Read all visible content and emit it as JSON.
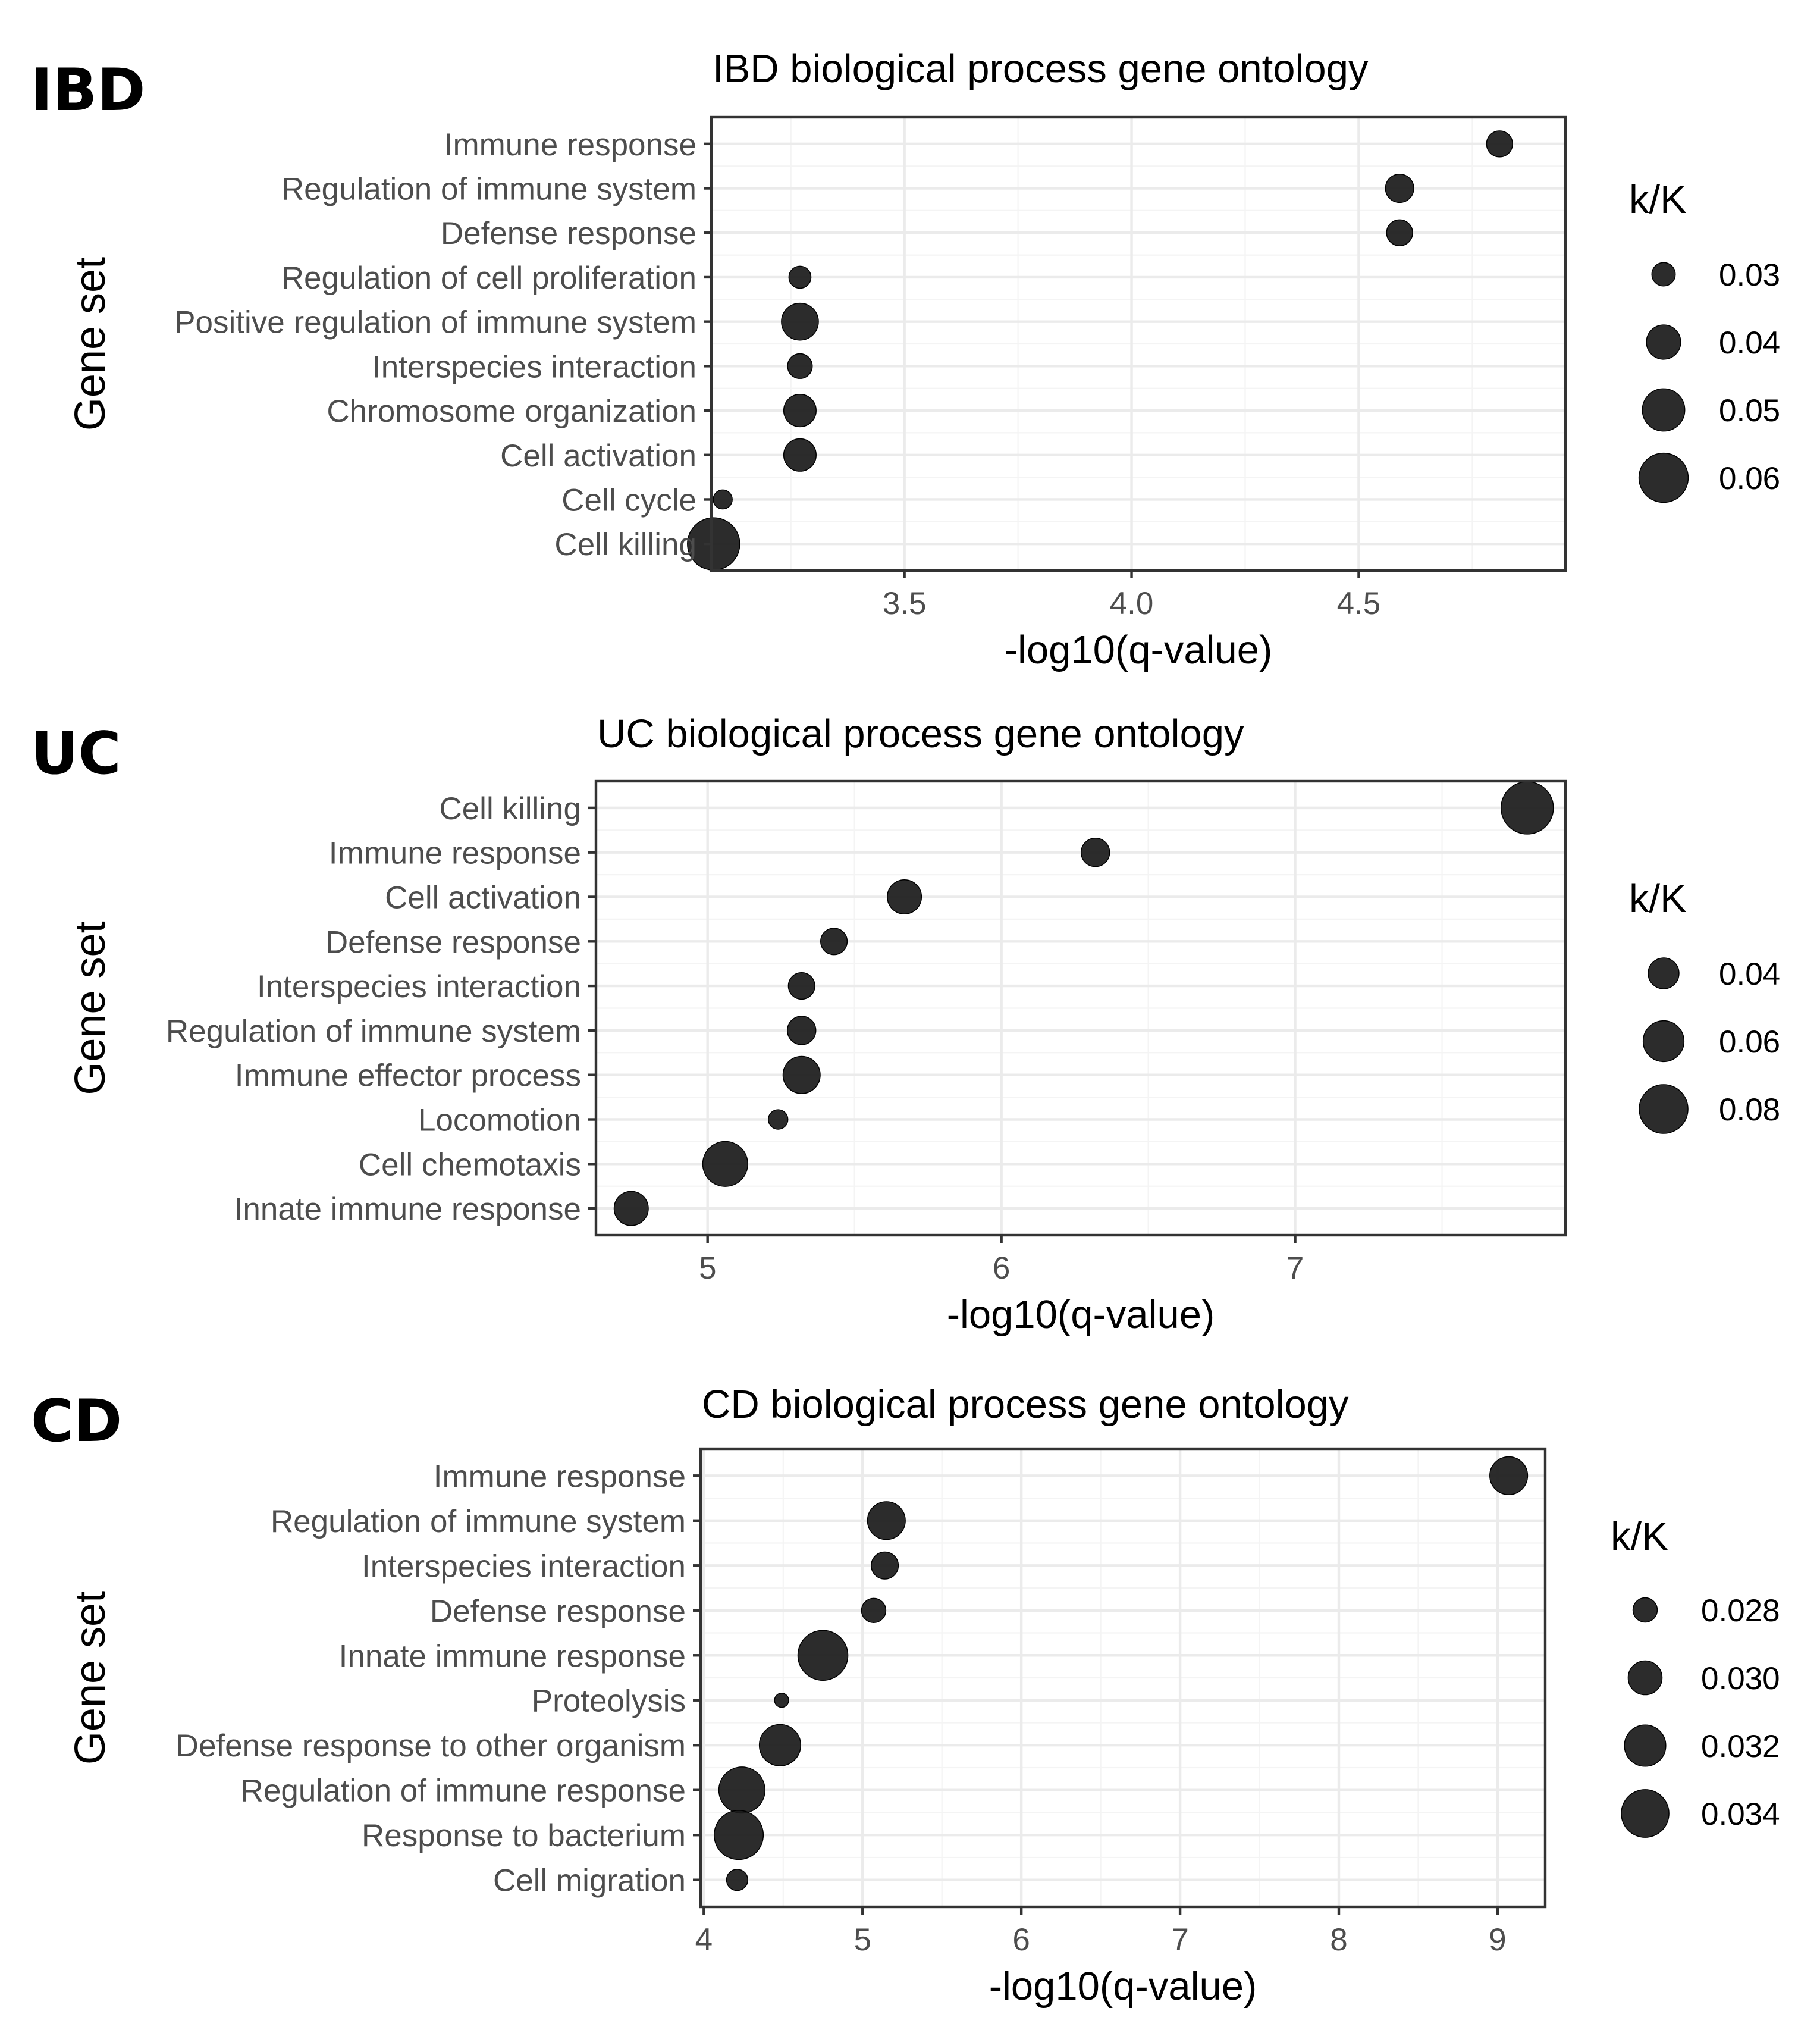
{
  "chart_data": [
    {
      "type": "scatter",
      "panel_label": "IBD",
      "title": "IBD biological process gene ontology",
      "xlabel": "-log10(q-value)",
      "ylabel": "Gene set",
      "xlim": [
        3.075,
        4.955
      ],
      "x_ticks": [
        3.5,
        4.0,
        4.5
      ],
      "x_tick_labels": [
        "3.5",
        "4.0",
        "4.5"
      ],
      "grid": true,
      "legend": {
        "title": "k/K",
        "position": "right",
        "values": [
          0.03,
          0.04,
          0.05,
          0.06
        ],
        "labels": [
          "0.03",
          "0.04",
          "0.05",
          "0.06"
        ]
      },
      "size_range": [
        0.025,
        0.065
      ],
      "categories": [
        "Immune response",
        "Regulation of immune system",
        "Defense response",
        "Regulation of cell proliferation",
        "Positive regulation of immune system",
        "Interspecies interaction",
        "Chromosome organization",
        "Cell activation",
        "Cell cycle",
        "Cell killing"
      ],
      "x": [
        4.81,
        4.59,
        4.59,
        3.27,
        3.27,
        3.27,
        3.27,
        3.27,
        3.1,
        3.08
      ],
      "size": [
        0.032,
        0.034,
        0.032,
        0.029,
        0.043,
        0.031,
        0.038,
        0.038,
        0.027,
        0.065
      ]
    },
    {
      "type": "scatter",
      "panel_label": "UC",
      "title": "UC biological process gene ontology",
      "xlabel": "-log10(q-value)",
      "ylabel": "Gene set",
      "xlim": [
        4.62,
        7.92
      ],
      "x_ticks": [
        5,
        6,
        7
      ],
      "x_tick_labels": [
        "5",
        "6",
        "7"
      ],
      "grid": true,
      "legend": {
        "title": "k/K",
        "position": "right",
        "values": [
          0.04,
          0.06,
          0.08
        ],
        "labels": [
          "0.04",
          "0.06",
          "0.08"
        ]
      },
      "size_range": [
        0.02,
        0.09
      ],
      "categories": [
        "Cell killing",
        "Immune response",
        "Cell activation",
        "Defense response",
        "Interspecies interaction",
        "Regulation of immune system",
        "Immune effector process",
        "Locomotion",
        "Cell chemotaxis",
        "Innate immune response"
      ],
      "x": [
        7.79,
        6.32,
        5.67,
        5.43,
        5.32,
        5.32,
        5.32,
        5.24,
        5.06,
        4.74
      ],
      "size": [
        0.09,
        0.036,
        0.046,
        0.033,
        0.033,
        0.036,
        0.052,
        0.024,
        0.07,
        0.046
      ]
    },
    {
      "type": "scatter",
      "panel_label": "CD",
      "title": "CD biological process gene ontology",
      "xlabel": "-log10(q-value)",
      "ylabel": "Gene set",
      "xlim": [
        3.98,
        9.3
      ],
      "x_ticks": [
        4,
        5,
        6,
        7,
        8,
        9
      ],
      "x_tick_labels": [
        "4",
        "5",
        "6",
        "7",
        "8",
        "9"
      ],
      "grid": true,
      "legend": {
        "title": "k/K",
        "position": "right",
        "values": [
          0.028,
          0.03,
          0.032,
          0.034
        ],
        "labels": [
          "0.028",
          "0.030",
          "0.032",
          "0.034"
        ]
      },
      "size_range": [
        0.0265,
        0.0348
      ],
      "categories": [
        "Immune response",
        "Regulation of immune system",
        "Interspecies interaction",
        "Defense response",
        "Innate immune response",
        "Proteolysis",
        "Defense response to other organism",
        "Regulation of immune response",
        "Response to bacterium",
        "Cell migration"
      ],
      "x": [
        9.07,
        5.15,
        5.14,
        5.07,
        4.75,
        4.49,
        4.48,
        4.24,
        4.22,
        4.21
      ],
      "size": [
        0.031,
        0.031,
        0.0285,
        0.028,
        0.0348,
        0.0266,
        0.032,
        0.0335,
        0.0345,
        0.0275
      ]
    }
  ]
}
